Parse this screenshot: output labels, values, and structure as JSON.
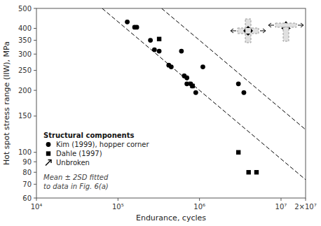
{
  "chart_data": {
    "type": "scatter",
    "xlabel": "Endurance, cycles",
    "ylabel": "Hot spot stress range (IIW), MPa",
    "log": true,
    "grid": false,
    "legend": "lower left",
    "xlim": [
      10000,
      20000000
    ],
    "ylim": [
      60,
      500
    ],
    "xticks": [
      {
        "value": 10000,
        "label": "10⁴"
      },
      {
        "value": 100000,
        "label": "10⁵"
      },
      {
        "value": 1000000,
        "label": "10⁶"
      },
      {
        "value": 10000000,
        "label": "10⁷"
      },
      {
        "value": 20000000,
        "label": "2×10⁷"
      }
    ],
    "yticks": [
      60,
      70,
      80,
      90,
      100,
      150,
      200,
      250,
      300,
      350,
      400,
      500
    ],
    "series": [
      {
        "name": "Kim (1999), hopper corner",
        "type": "scatter",
        "marker": "circle",
        "color": "#000000",
        "x": [
          130000,
          160000,
          170000,
          250000,
          280000,
          320000,
          420000,
          450000,
          600000,
          650000,
          700000,
          700000,
          780000,
          820000,
          900000,
          1100000,
          3000000,
          3500000
        ],
        "values": [
          430,
          405,
          405,
          350,
          315,
          310,
          265,
          260,
          310,
          235,
          230,
          215,
          215,
          210,
          195,
          260,
          215,
          195
        ]
      },
      {
        "name": "Dahle (1997)",
        "type": "scatter",
        "marker": "square",
        "color": "#000000",
        "x": [
          320000,
          820000,
          3000000,
          4000000,
          5000000
        ],
        "values": [
          355,
          210,
          100,
          80,
          80
        ]
      },
      {
        "name": "Unbroken",
        "type": "scatter",
        "marker": "arrow",
        "color": "#000000",
        "x": [],
        "values": []
      },
      {
        "type": "line",
        "line_style": "dashed",
        "color": "#000000",
        "x": [
          343000,
          1000000,
          20000000
        ],
        "values": [
          500,
          350,
          128.941
        ]
      },
      {
        "type": "line",
        "line_style": "dashed",
        "color": "#000000",
        "x": [
          64000,
          1000000,
          20000000
        ],
        "values": [
          500,
          200,
          73.681
        ]
      }
    ],
    "annotations": [
      {
        "text": "Structural components"
      },
      {
        "text": "Mean ± 2SD fitted\nto data in Fig. 6(a)"
      }
    ]
  }
}
